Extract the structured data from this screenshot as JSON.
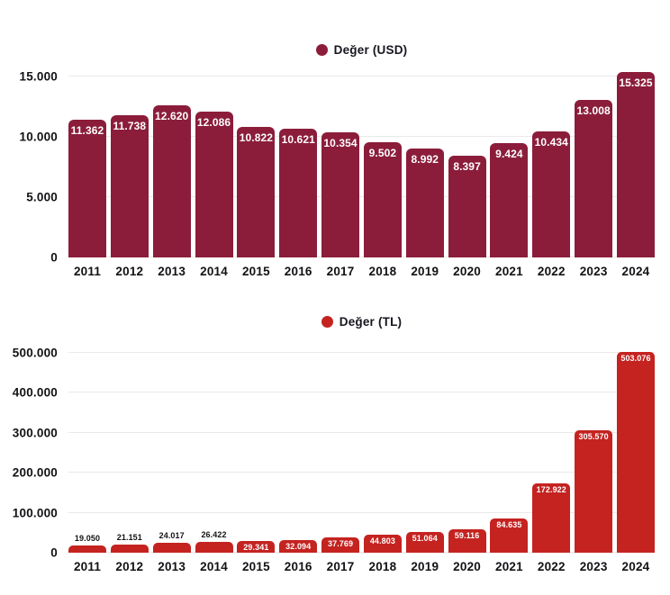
{
  "page": {
    "background": "#ffffff"
  },
  "chart_data": [
    {
      "type": "bar",
      "title": "",
      "legend": {
        "label": "Değer (USD)",
        "color": "#8B1D3B",
        "position": "top-center"
      },
      "bar_color": "#8B1D3B",
      "value_label_color_inside": "#ffffff",
      "categories": [
        "2011",
        "2012",
        "2013",
        "2014",
        "2015",
        "2016",
        "2017",
        "2018",
        "2019",
        "2020",
        "2021",
        "2022",
        "2023",
        "2024"
      ],
      "values": [
        11362,
        11738,
        12620,
        12086,
        10822,
        10621,
        10354,
        9502,
        8992,
        8397,
        9424,
        10434,
        13008,
        15325
      ],
      "value_labels": [
        "11.362",
        "11.738",
        "12.620",
        "12.086",
        "10.822",
        "10.621",
        "10.354",
        "9.502",
        "8.992",
        "8.397",
        "9.424",
        "10.434",
        "13.008",
        "15.325"
      ],
      "xlabel": "",
      "ylabel": "",
      "ylim": [
        0,
        15325
      ],
      "grid": "horizontal",
      "yticks": [
        {
          "value": 15000,
          "label": "15.000"
        },
        {
          "value": 10000,
          "label": "10.000"
        },
        {
          "value": 5000,
          "label": "5.000"
        },
        {
          "value": 0,
          "label": "0"
        }
      ]
    },
    {
      "type": "bar",
      "title": "",
      "legend": {
        "label": "Değer (TL)",
        "color": "#C42320",
        "position": "top-center"
      },
      "bar_color": "#C42320",
      "value_label_color_inside": "#ffffff",
      "categories": [
        "2011",
        "2012",
        "2013",
        "2014",
        "2015",
        "2016",
        "2017",
        "2018",
        "2019",
        "2020",
        "2021",
        "2022",
        "2023",
        "2024"
      ],
      "values": [
        19050,
        21151,
        24017,
        26422,
        29341,
        32094,
        37769,
        44803,
        51064,
        59116,
        84635,
        172922,
        305570,
        503076
      ],
      "value_labels": [
        "19.050",
        "21.151",
        "24.017",
        "26.422",
        "29.341",
        "32.094",
        "37.769",
        "44.803",
        "51.064",
        "59.116",
        "84.635",
        "172.922",
        "305.570",
        "503.076"
      ],
      "xlabel": "",
      "ylabel": "",
      "ylim": [
        0,
        503076
      ],
      "grid": "horizontal",
      "yticks": [
        {
          "value": 500000,
          "label": "500.000"
        },
        {
          "value": 400000,
          "label": "400.000"
        },
        {
          "value": 300000,
          "label": "300.000"
        },
        {
          "value": 200000,
          "label": "200.000"
        },
        {
          "value": 100000,
          "label": "100.000"
        },
        {
          "value": 0,
          "label": "0"
        }
      ]
    }
  ]
}
